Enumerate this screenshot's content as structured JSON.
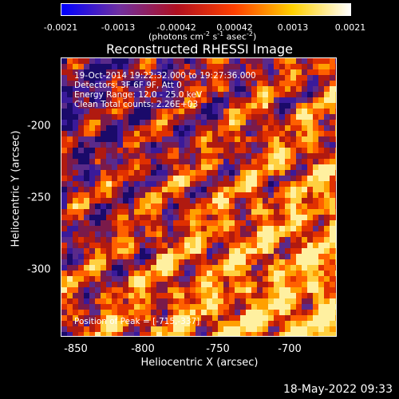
{
  "colorbar": {
    "ticks": [
      "-0.0021",
      "-0.0013",
      "-0.00042",
      "0.00042",
      "0.0013",
      "0.0021"
    ],
    "units_prefix": "(photons cm",
    "units_e1": "-2",
    "units_mid1": " s",
    "units_e2": "-1",
    "units_mid2": " asec",
    "units_e3": "-2",
    "units_suffix": ")",
    "colors": [
      "#0000ff",
      "#7030a0",
      "#b01020",
      "#ff4000",
      "#ffd000",
      "#ffffff"
    ]
  },
  "title": "Reconstructed RHESSI Image",
  "annotations": {
    "line1": "19-Oct-2014 19:22:32.000 to 19:27:36.000",
    "line2": "Detectors: 3F 6F 9F, Att 0",
    "line3": "Energy Range: 12.0 - 25.0 keV",
    "line4": "Clean    Total counts: 2.26E+03",
    "peak": "Position of Peak = [-715,-337]"
  },
  "axes": {
    "xlabel": "Heliocentric X (arcsec)",
    "ylabel": "Heliocentric Y (arcsec)",
    "xticks": [
      "-850",
      "-800",
      "-750",
      "-700"
    ],
    "yticks": [
      "-200",
      "-250",
      "-300"
    ]
  },
  "timestamp": "18-May-2022 09:33"
}
